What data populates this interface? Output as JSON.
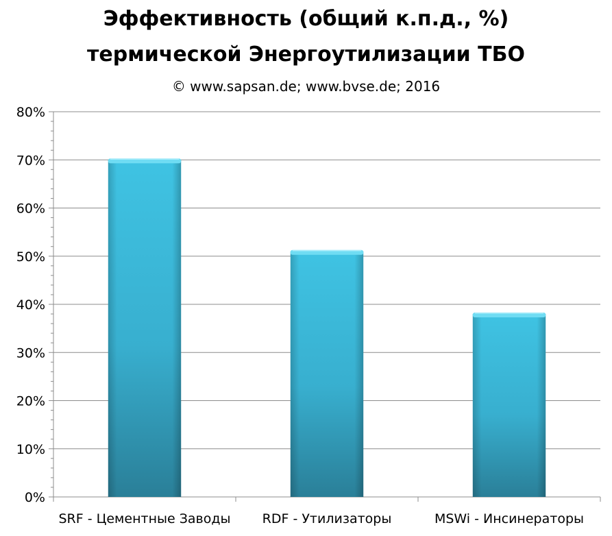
{
  "chart_data": {
    "type": "bar",
    "title_line1": "Эффективность (общий к.п.д., %)",
    "title_line2": "термической Энергоутилизации ТБО",
    "subtitle": "© www.sapsan.de; www.bvse.de; 2016",
    "categories": [
      "SRF - Цементные Заводы",
      "RDF - Утилизаторы",
      "MSWi - Инсинераторы"
    ],
    "values": [
      70,
      51,
      38
    ],
    "ylim": [
      0,
      80
    ],
    "yticks": [
      "0%",
      "10%",
      "20%",
      "30%",
      "40%",
      "50%",
      "60%",
      "70%",
      "80%"
    ],
    "xlabel": "",
    "ylabel": "",
    "grid": true,
    "legend": "none",
    "bar_color": "#3bbad8",
    "bar_color_dark": "#2b8aa3"
  }
}
